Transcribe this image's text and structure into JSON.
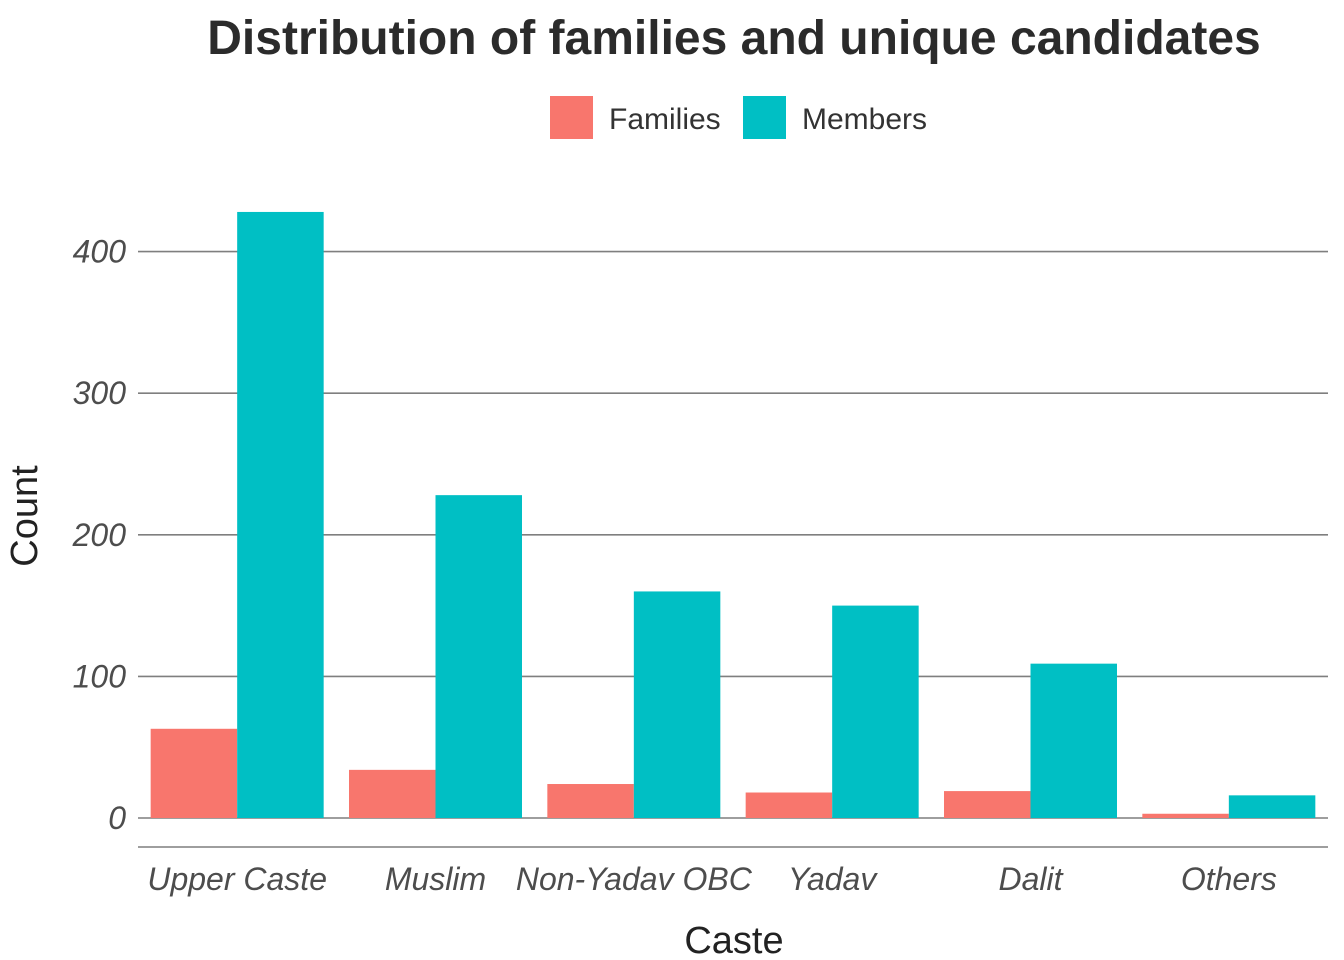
{
  "chart_data": {
    "type": "bar",
    "title": "Distribution of families and unique candidates",
    "xlabel": "Caste",
    "ylabel": "Count",
    "categories": [
      "Upper Caste",
      "Muslim",
      "Non-Yadav OBC",
      "Yadav",
      "Dalit",
      "Others"
    ],
    "series": [
      {
        "name": "Families",
        "color": "#F8766D",
        "values": [
          63,
          34,
          24,
          18,
          19,
          3
        ]
      },
      {
        "name": "Members",
        "color": "#00BFC4",
        "values": [
          428,
          228,
          160,
          150,
          109,
          16
        ]
      }
    ],
    "ylim": [
      0,
      428
    ],
    "yticks": [
      0,
      100,
      200,
      300,
      400
    ],
    "grid": true,
    "legend": "top"
  }
}
